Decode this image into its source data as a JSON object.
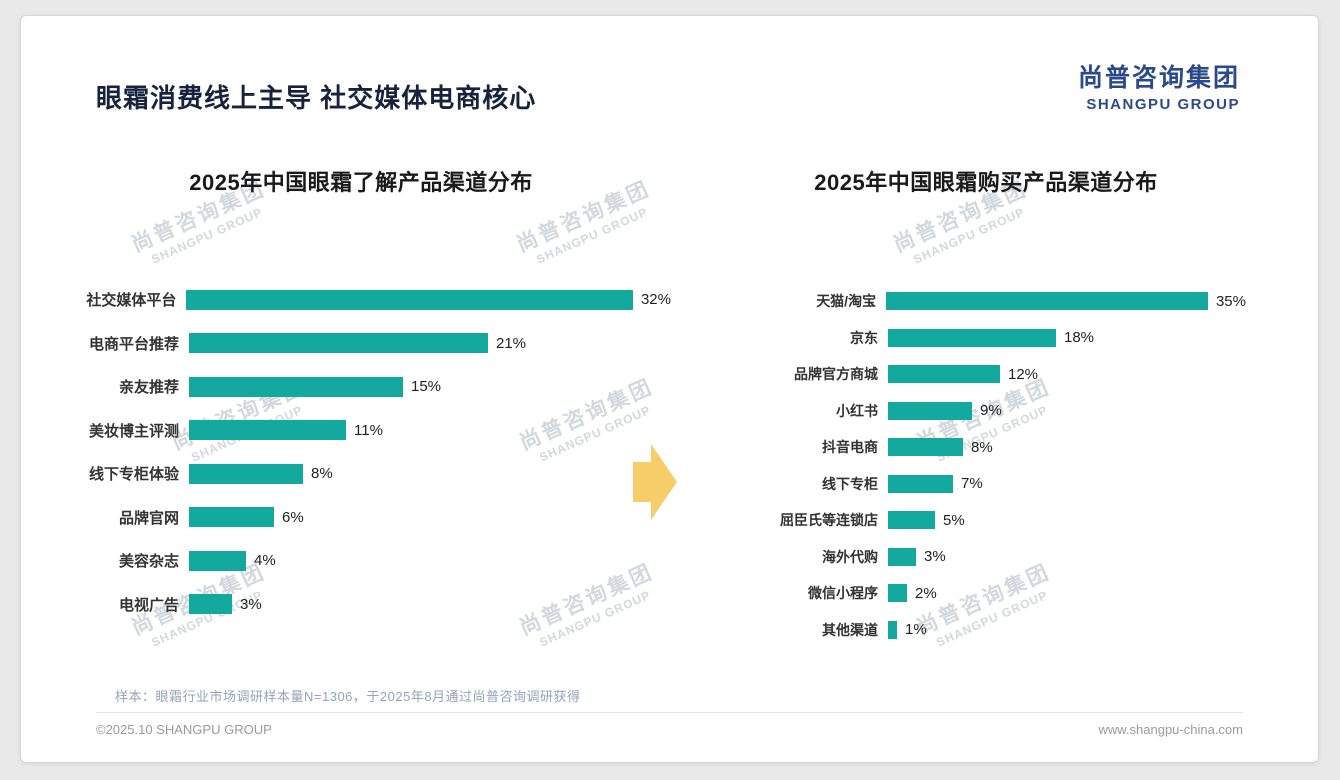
{
  "page": {
    "title": "眼霜消费线上主导 社交媒体电商核心",
    "logo": {
      "cn": "尚普咨询集团",
      "en": "SHANGPU GROUP"
    },
    "watermark": {
      "cn": "尚普咨询集团",
      "en": "SHANGPU GROUP"
    },
    "footnote": "样本：眼霜行业市场调研样本量N=1306，于2025年8月通过尚普咨询调研获得",
    "footer_left": "©2025.10 SHANGPU GROUP",
    "footer_right": "www.shangpu-china.com"
  },
  "colors": {
    "bar": "#14a99e",
    "arrow": "#f7cd6a",
    "logo_blue": "#2b4a8c"
  },
  "chart_data": [
    {
      "type": "bar",
      "orientation": "horizontal",
      "title": "2025年中国眼霜了解产品渠道分布",
      "categories": [
        "社交媒体平台",
        "电商平台推荐",
        "亲友推荐",
        "美妆博主评测",
        "线下专柜体验",
        "品牌官网",
        "美容杂志",
        "电视广告"
      ],
      "values": [
        32,
        21,
        15,
        11,
        8,
        6,
        4,
        3
      ],
      "unit": "%",
      "xlim": [
        0,
        33
      ],
      "grid": false,
      "legend": false
    },
    {
      "type": "bar",
      "orientation": "horizontal",
      "title": "2025年中国眼霜购买产品渠道分布",
      "categories": [
        "天猫/淘宝",
        "京东",
        "品牌官方商城",
        "小红书",
        "抖音电商",
        "线下专柜",
        "屈臣氏等连锁店",
        "海外代购",
        "微信小程序",
        "其他渠道"
      ],
      "values": [
        35,
        18,
        12,
        9,
        8,
        7,
        5,
        3,
        2,
        1
      ],
      "unit": "%",
      "xlim": [
        0,
        37
      ],
      "grid": false,
      "legend": false
    }
  ]
}
